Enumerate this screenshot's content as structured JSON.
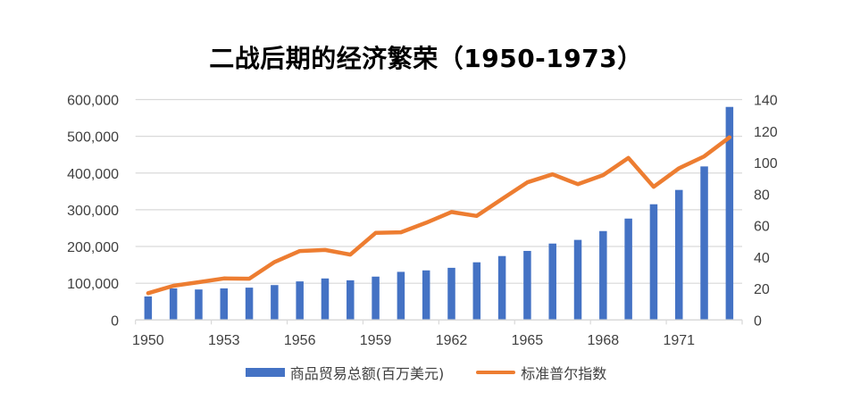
{
  "chart_data": {
    "type": "bar+line",
    "title": "二战后期的经济繁荣（1950-1973）",
    "xlabel": "",
    "ylabel": "",
    "y2label": "",
    "categories": [
      "1950",
      "1951",
      "1952",
      "1953",
      "1954",
      "1955",
      "1956",
      "1957",
      "1958",
      "1959",
      "1960",
      "1961",
      "1962",
      "1963",
      "1964",
      "1965",
      "1966",
      "1967",
      "1968",
      "1969",
      "1970",
      "1971",
      "1972",
      "1973"
    ],
    "x_tick_labels": [
      "1950",
      "1953",
      "1956",
      "1959",
      "1962",
      "1965",
      "1968",
      "1971"
    ],
    "series": [
      {
        "name": "商品贸易总额(百万美元)",
        "type": "bar",
        "axis": "left",
        "color": "#4472C4",
        "values": [
          64000,
          86000,
          83000,
          86000,
          88000,
          95000,
          105000,
          113000,
          108000,
          118000,
          131000,
          135000,
          142000,
          157000,
          174000,
          188000,
          208000,
          218000,
          242000,
          276000,
          315000,
          354000,
          418000,
          580000
        ]
      },
      {
        "name": "标准普尔指数",
        "type": "line",
        "axis": "right",
        "color": "#ED7D31",
        "values": [
          17,
          21.7,
          24,
          26.4,
          26.2,
          36.8,
          43.8,
          44.5,
          41.5,
          55.3,
          55.7,
          61.8,
          68.6,
          66.1,
          76.8,
          87.4,
          92.5,
          86.3,
          92,
          102.9,
          84.6,
          96.3,
          103.9,
          116
        ]
      }
    ],
    "ylim": [
      0,
      600000
    ],
    "y2lim": [
      0,
      140
    ],
    "y_ticks": [
      0,
      100000,
      200000,
      300000,
      400000,
      500000,
      600000
    ],
    "y_tick_labels": [
      "0",
      "100,000",
      "200,000",
      "300,000",
      "400,000",
      "500,000",
      "600,000"
    ],
    "y2_ticks": [
      0,
      20,
      40,
      60,
      80,
      100,
      120,
      140
    ],
    "y2_tick_labels": [
      "0",
      "20",
      "40",
      "60",
      "80",
      "100",
      "120",
      "140"
    ],
    "grid": true,
    "legend_position": "bottom"
  },
  "colors": {
    "bar": "#4472C4",
    "line": "#ED7D31",
    "grid": "#D9D9D9",
    "axis_text": "#404040"
  },
  "legend": {
    "items": [
      {
        "label": "商品贸易总额(百万美元)",
        "kind": "bar"
      },
      {
        "label": "标准普尔指数",
        "kind": "line"
      }
    ]
  }
}
